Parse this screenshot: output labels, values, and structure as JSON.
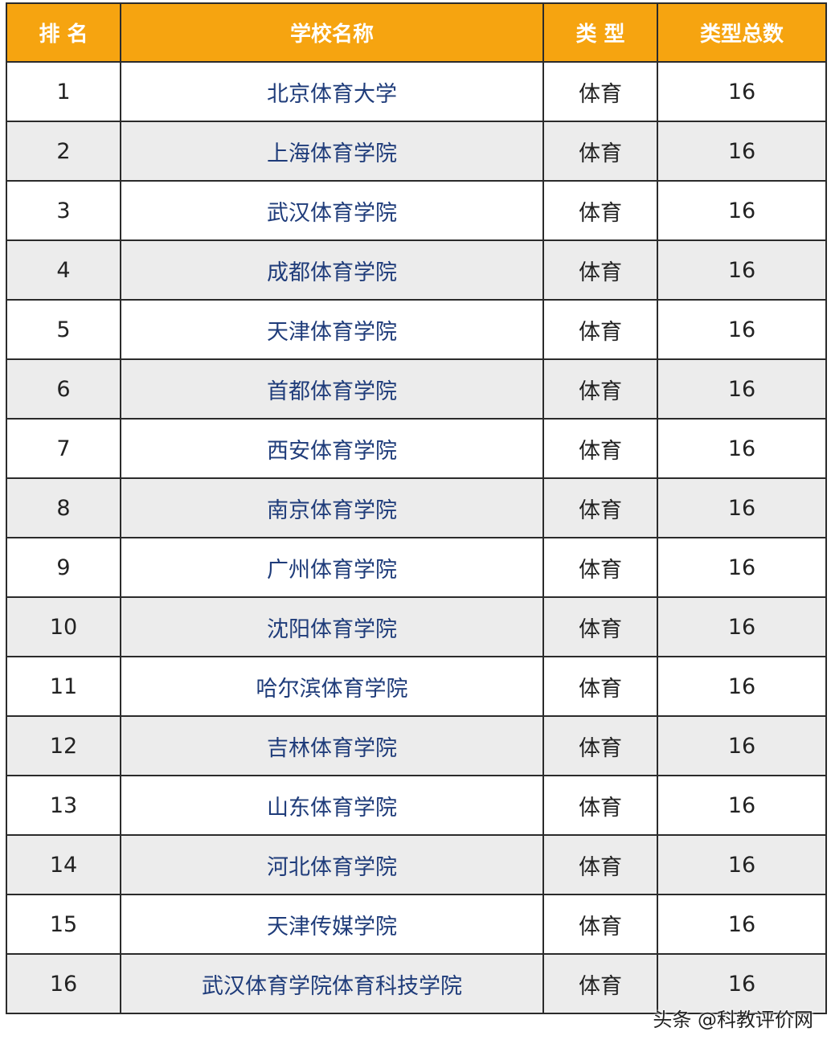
{
  "table": {
    "header": [
      "排 名",
      "学校名称",
      "类 型",
      "类型总数"
    ],
    "rows": [
      [
        1,
        "北京体育大学",
        "体育",
        16
      ],
      [
        2,
        "上海体育学院",
        "体育",
        16
      ],
      [
        3,
        "武汉体育学院",
        "体育",
        16
      ],
      [
        4,
        "成都体育学院",
        "体育",
        16
      ],
      [
        5,
        "天津体育学院",
        "体育",
        16
      ],
      [
        6,
        "首都体育学院",
        "体育",
        16
      ],
      [
        7,
        "西安体育学院",
        "体育",
        16
      ],
      [
        8,
        "南京体育学院",
        "体育",
        16
      ],
      [
        9,
        "广州体育学院",
        "体育",
        16
      ],
      [
        10,
        "沈阳体育学院",
        "体育",
        16
      ],
      [
        11,
        "哈尔滨体育学院",
        "体育",
        16
      ],
      [
        12,
        "吉林体育学院",
        "体育",
        16
      ],
      [
        13,
        "山东体育学院",
        "体育",
        16
      ],
      [
        14,
        "河北体育学院",
        "体育",
        16
      ],
      [
        15,
        "天津传媒学院",
        "体育",
        16
      ],
      [
        16,
        "武汉体育学院体育科技学院",
        "体育",
        16
      ]
    ]
  },
  "watermark": "头条 @科教评价网"
}
